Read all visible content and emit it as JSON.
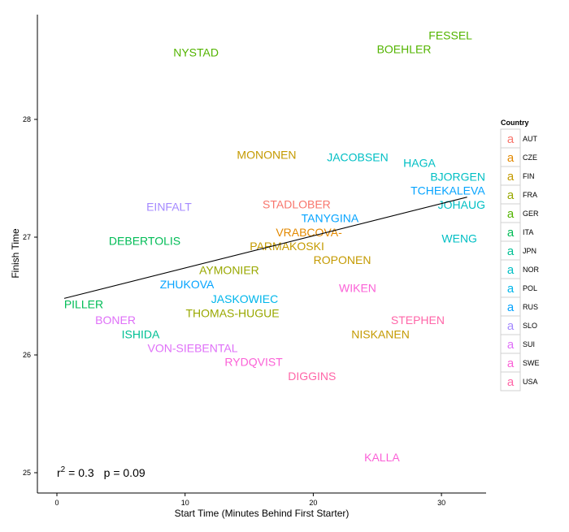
{
  "chart_data": {
    "type": "scatter",
    "title": "",
    "xlabel": "Start Time (Minutes Behind First Starter)",
    "ylabel": "Finish Time",
    "xlim": [
      -1.5,
      33.6
    ],
    "ylim": [
      24.82,
      28.89
    ],
    "xticks": [
      0,
      10,
      20,
      30
    ],
    "yticks": [
      25,
      26,
      27,
      28
    ],
    "grid": false,
    "annotation": {
      "r2_label": "r",
      "r2_sup": "2",
      "r2_value": " = 0.3",
      "p_text": "p = 0.09"
    },
    "fit_line": {
      "x": [
        0.57,
        32.0
      ],
      "y": [
        26.48,
        27.34
      ]
    },
    "legend": {
      "title": "Country",
      "placement": "right",
      "key_glyph": "a",
      "entries": [
        {
          "name": "AUT",
          "color": "#F8766D"
        },
        {
          "name": "CZE",
          "color": "#E38900"
        },
        {
          "name": "FIN",
          "color": "#C49A00"
        },
        {
          "name": "FRA",
          "color": "#99A800"
        },
        {
          "name": "GER",
          "color": "#53B400"
        },
        {
          "name": "ITA",
          "color": "#00BC56"
        },
        {
          "name": "JPN",
          "color": "#00C094"
        },
        {
          "name": "NOR",
          "color": "#00BFC4"
        },
        {
          "name": "POL",
          "color": "#00B6EB"
        },
        {
          "name": "RUS",
          "color": "#06A4FF"
        },
        {
          "name": "SLO",
          "color": "#A58AFF"
        },
        {
          "name": "SUI",
          "color": "#DF70F8"
        },
        {
          "name": "SWE",
          "color": "#FB61D7"
        },
        {
          "name": "USA",
          "color": "#FF66A8"
        }
      ]
    },
    "points": [
      {
        "label": "NYSTAD",
        "country": "GER",
        "x": 10.85,
        "y": 28.57
      },
      {
        "label": "BOEHLER",
        "country": "GER",
        "x": 27.08,
        "y": 28.62
      },
      {
        "label": "FESSEL",
        "country": "GER",
        "x": 30.7,
        "y": 28.69
      },
      {
        "label": "MONONEN",
        "country": "FIN",
        "x": 16.36,
        "y": 27.7
      },
      {
        "label": "JACOBSEN",
        "country": "NOR",
        "x": 23.46,
        "y": 27.68
      },
      {
        "label": "HAGA",
        "country": "NOR",
        "x": 28.28,
        "y": 27.48
      },
      {
        "label": "TCHEKALEVA",
        "country": "RUS",
        "x": 31.1,
        "y": 27.45
      },
      {
        "label": "BJORGEN",
        "country": "NOR",
        "x": 33.6,
        "y": 27.52
      },
      {
        "label": "JOHAUG",
        "country": "NOR",
        "x": 33.0,
        "y": 27.37
      },
      {
        "label": "WENG",
        "country": "NOR",
        "x": 31.4,
        "y": 26.99
      },
      {
        "label": "EINFALT",
        "country": "SLO",
        "x": 8.75,
        "y": 27.26
      },
      {
        "label": "DEBERTOLIS",
        "country": "ITA",
        "x": 6.85,
        "y": 26.97
      },
      {
        "label": "STADLOBER",
        "country": "AUT",
        "x": 18.7,
        "y": 27.23
      },
      {
        "label": "TANYGINA",
        "country": "RUS",
        "x": 21.3,
        "y": 27.14
      },
      {
        "label": "VRABCOVA-",
        "country": "CZE",
        "x": 19.66,
        "y": 27.03
      },
      {
        "label": "PARMAKOSKI",
        "country": "FIN",
        "x": 17.95,
        "y": 26.94
      },
      {
        "label": "ROPONEN",
        "country": "FIN",
        "x": 22.26,
        "y": 26.88
      },
      {
        "label": "AYMONIER",
        "country": "FRA",
        "x": 13.44,
        "y": 26.72
      },
      {
        "label": "ZHUKOVA",
        "country": "RUS",
        "x": 10.15,
        "y": 26.6
      },
      {
        "label": "PILLER",
        "country": "ITA",
        "x": 2.09,
        "y": 26.43
      },
      {
        "label": "WIKEN",
        "country": "SWE",
        "x": 23.46,
        "y": 26.57
      },
      {
        "label": "JASKOWIEC",
        "country": "POL",
        "x": 14.65,
        "y": 26.45
      },
      {
        "label": "THOMAS-HUGUE",
        "country": "FRA",
        "x": 13.7,
        "y": 26.38
      },
      {
        "label": "BONER",
        "country": "SUI",
        "x": 4.57,
        "y": 26.23
      },
      {
        "label": "ISHIDA",
        "country": "JPN",
        "x": 6.53,
        "y": 26.18
      },
      {
        "label": "VON-SIEBENTAL",
        "country": "SUI",
        "x": 10.59,
        "y": 26.12
      },
      {
        "label": "NISKANEN",
        "country": "FIN",
        "x": 25.24,
        "y": 26.22
      },
      {
        "label": "STEPHEN",
        "country": "USA",
        "x": 28.15,
        "y": 26.25
      },
      {
        "label": "RYDQVIST",
        "country": "SWE",
        "x": 15.35,
        "y": 25.94
      },
      {
        "label": "DIGGINS",
        "country": "USA",
        "x": 19.9,
        "y": 25.82
      },
      {
        "label": "KALLA",
        "country": "SWE",
        "x": 25.36,
        "y": 25.13
      }
    ]
  }
}
